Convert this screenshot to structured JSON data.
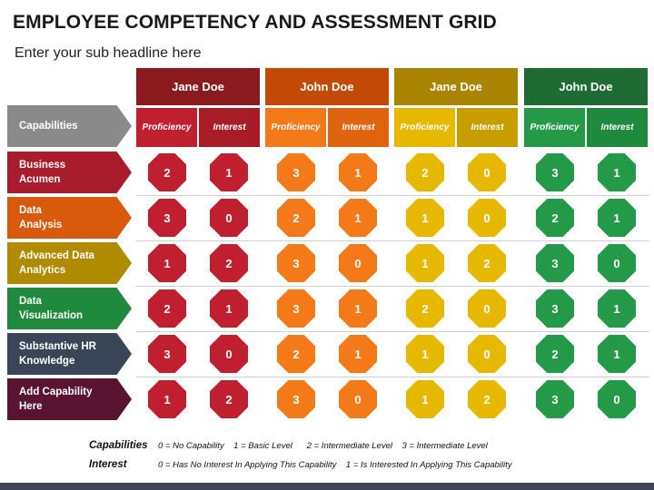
{
  "title": "EMPLOYEE COMPETENCY AND ASSESSMENT GRID",
  "subtitle": "Enter your sub headline here",
  "capabilities_header": "Capabilities",
  "people": [
    {
      "name": "Jane Doe",
      "color": "#8b1a1f",
      "sub_left_color": "#c01f2f",
      "sub_right_color": "#a71c26",
      "oct_color": "#c01f2f"
    },
    {
      "name": "John Doe",
      "color": "#c24a06",
      "sub_left_color": "#f47a19",
      "sub_right_color": "#e0630f",
      "oct_color": "#f47a19"
    },
    {
      "name": "Jane Doe",
      "color": "#a98400",
      "sub_left_color": "#e7b800",
      "sub_right_color": "#c89d00",
      "oct_color": "#e7b800"
    },
    {
      "name": "John Doe",
      "color": "#1e6b34",
      "sub_left_color": "#249a48",
      "sub_right_color": "#1f8a3e",
      "oct_color": "#249a48"
    }
  ],
  "subheaders": [
    "Proficiency",
    "Interest"
  ],
  "rows": [
    {
      "label_line1": "Business",
      "label_line2": "Acumen",
      "color": "#a81c2b",
      "values": [
        "2",
        "1",
        "3",
        "1",
        "2",
        "0",
        "3",
        "1"
      ]
    },
    {
      "label_line1": "Data",
      "label_line2": "Analysis",
      "color": "#d95a0c",
      "values": [
        "3",
        "0",
        "2",
        "1",
        "1",
        "0",
        "2",
        "1"
      ]
    },
    {
      "label_line1": "Advanced Data",
      "label_line2": "Analytics",
      "color": "#b08b00",
      "values": [
        "1",
        "2",
        "3",
        "0",
        "1",
        "2",
        "3",
        "0"
      ]
    },
    {
      "label_line1": "Data",
      "label_line2": "Visualization",
      "color": "#1f8a3e",
      "values": [
        "2",
        "1",
        "3",
        "1",
        "2",
        "0",
        "3",
        "1"
      ]
    },
    {
      "label_line1": "Substantive HR",
      "label_line2": "Knowledge",
      "color": "#3a4657",
      "values": [
        "3",
        "0",
        "2",
        "1",
        "1",
        "0",
        "2",
        "1"
      ]
    },
    {
      "label_line1": "Add Capability",
      "label_line2": "Here",
      "color": "#5a1432",
      "values": [
        "1",
        "2",
        "3",
        "0",
        "1",
        "2",
        "3",
        "0"
      ]
    }
  ],
  "legend": {
    "capabilities_label": "Capabilities",
    "capabilities_text": "0 = No Capability    1 = Basic Level      2 = Intermediate Level    3 = Intermediate Level",
    "interest_label": "Interest",
    "interest_text": "0 = Has No Interest In Applying This Capability    1 = Is Interested In Applying This Capability"
  },
  "capabilities_arrow_color": "#8a8a8a"
}
